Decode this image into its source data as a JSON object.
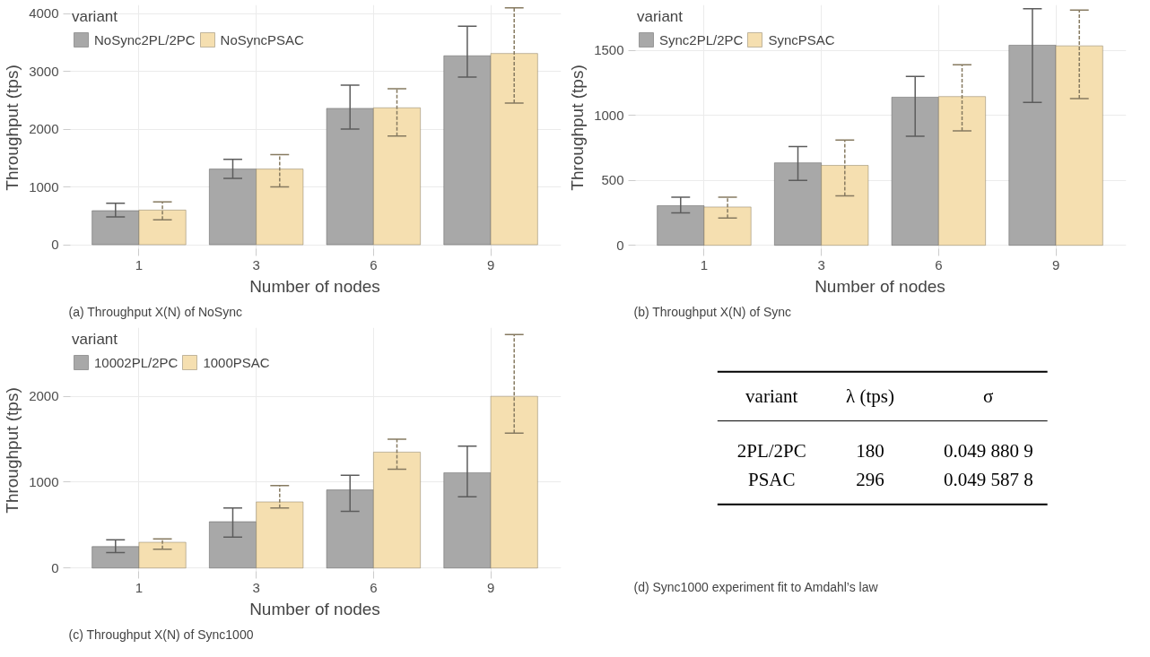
{
  "chart_data": [
    {
      "type": "bar",
      "title": "(a) Throughput X(N) of NoSync",
      "xlabel": "Number of nodes",
      "ylabel": "Throughput (tps)",
      "legend_title": "variant",
      "legend": "top left",
      "grid": true,
      "categories": [
        "1",
        "3",
        "6",
        "9"
      ],
      "ylim": [
        -100,
        4150
      ],
      "yticks": [
        0,
        1000,
        2000,
        3000,
        4000
      ],
      "series": [
        {
          "name": "NoSync2PL/2PC",
          "color": "#a8a8a8",
          "values": [
            590,
            1310,
            2360,
            3270
          ],
          "errors": [
            [
              480,
              720
            ],
            [
              1150,
              1480
            ],
            [
              2000,
              2760
            ],
            [
              2900,
              3780
            ]
          ]
        },
        {
          "name": "NoSyncPSAC",
          "color": "#f5dfb0",
          "values": [
            600,
            1310,
            2370,
            3310
          ],
          "errors": [
            [
              430,
              740
            ],
            [
              1000,
              1560
            ],
            [
              1880,
              2700
            ],
            [
              2450,
              4100
            ]
          ]
        }
      ]
    },
    {
      "type": "bar",
      "title": "(b) Throughput X(N) of Sync",
      "xlabel": "Number of nodes",
      "ylabel": "Throughput (tps)",
      "legend_title": "variant",
      "legend": "top left",
      "grid": true,
      "categories": [
        "1",
        "3",
        "6",
        "9"
      ],
      "ylim": [
        -40,
        1850
      ],
      "yticks": [
        0,
        500,
        1000,
        1500
      ],
      "series": [
        {
          "name": "Sync2PL/2PC",
          "color": "#a8a8a8",
          "values": [
            305,
            635,
            1140,
            1540
          ],
          "errors": [
            [
              250,
              370
            ],
            [
              500,
              760
            ],
            [
              840,
              1300
            ],
            [
              1100,
              1820
            ]
          ]
        },
        {
          "name": "SyncPSAC",
          "color": "#f5dfb0",
          "values": [
            295,
            615,
            1145,
            1535
          ],
          "errors": [
            [
              210,
              370
            ],
            [
              380,
              810
            ],
            [
              880,
              1390
            ],
            [
              1130,
              1810
            ]
          ]
        }
      ]
    },
    {
      "type": "bar",
      "title": "(c) Throughput X(N) of Sync1000",
      "xlabel": "Number of nodes",
      "ylabel": "Throughput (tps)",
      "legend_title": "variant",
      "legend": "top left",
      "grid": true,
      "categories": [
        "1",
        "3",
        "6",
        "9"
      ],
      "ylim": [
        -60,
        2800
      ],
      "yticks": [
        0,
        1000,
        2000
      ],
      "series": [
        {
          "name": "10002PL/2PC",
          "color": "#a8a8a8",
          "values": [
            250,
            540,
            910,
            1110
          ],
          "errors": [
            [
              180,
              330
            ],
            [
              360,
              700
            ],
            [
              660,
              1080
            ],
            [
              830,
              1420
            ]
          ]
        },
        {
          "name": "1000PSAC",
          "color": "#f5dfb0",
          "values": [
            300,
            770,
            1350,
            2000
          ],
          "errors": [
            [
              220,
              340
            ],
            [
              700,
              960
            ],
            [
              1150,
              1500
            ],
            [
              1570,
              2720
            ]
          ]
        }
      ]
    },
    {
      "type": "other",
      "title": "(d) Sync1000 experiment fit to Amdahl’s law",
      "annotations": [
        "variant",
        "λ (tps)",
        "σ",
        "2PL/2PC",
        "180",
        "0.049 880 9",
        "PSAC",
        "296",
        "0.049 587 8"
      ]
    }
  ]
}
